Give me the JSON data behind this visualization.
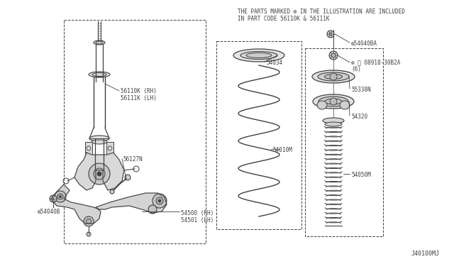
{
  "bg_color": "#ffffff",
  "line_color": "#404040",
  "header_text_line1": "THE PARTS MARKED ✿ IN THE ILLUSTRATION ARE INCLUDED",
  "header_text_line2": "IN PART CODE 56110K & 56111K",
  "diagram_id": "J40100MJ",
  "parts": [
    {
      "id": "56110K (RH)\n56111K (LH)",
      "x_label": 175,
      "y_label": 128
    },
    {
      "id": "56127N",
      "x_label": 178,
      "y_label": 222
    },
    {
      "id": "✿54040B",
      "x_label": 48,
      "y_label": 298
    },
    {
      "id": "54500 (RH)\n54501 (LH)",
      "x_label": 258,
      "y_label": 300
    },
    {
      "id": "54034",
      "x_label": 370,
      "y_label": 87
    },
    {
      "id": "54010M",
      "x_label": 387,
      "y_label": 210
    },
    {
      "id": "✿54040BA",
      "x_label": 497,
      "y_label": 60
    },
    {
      "id": "✿ ⓝ 08918-30B2A\n(6)",
      "x_label": 497,
      "y_label": 85
    },
    {
      "id": "55338N",
      "x_label": 497,
      "y_label": 125
    },
    {
      "id": "54320",
      "x_label": 497,
      "y_label": 163
    },
    {
      "id": "54050M",
      "x_label": 497,
      "y_label": 245
    }
  ]
}
